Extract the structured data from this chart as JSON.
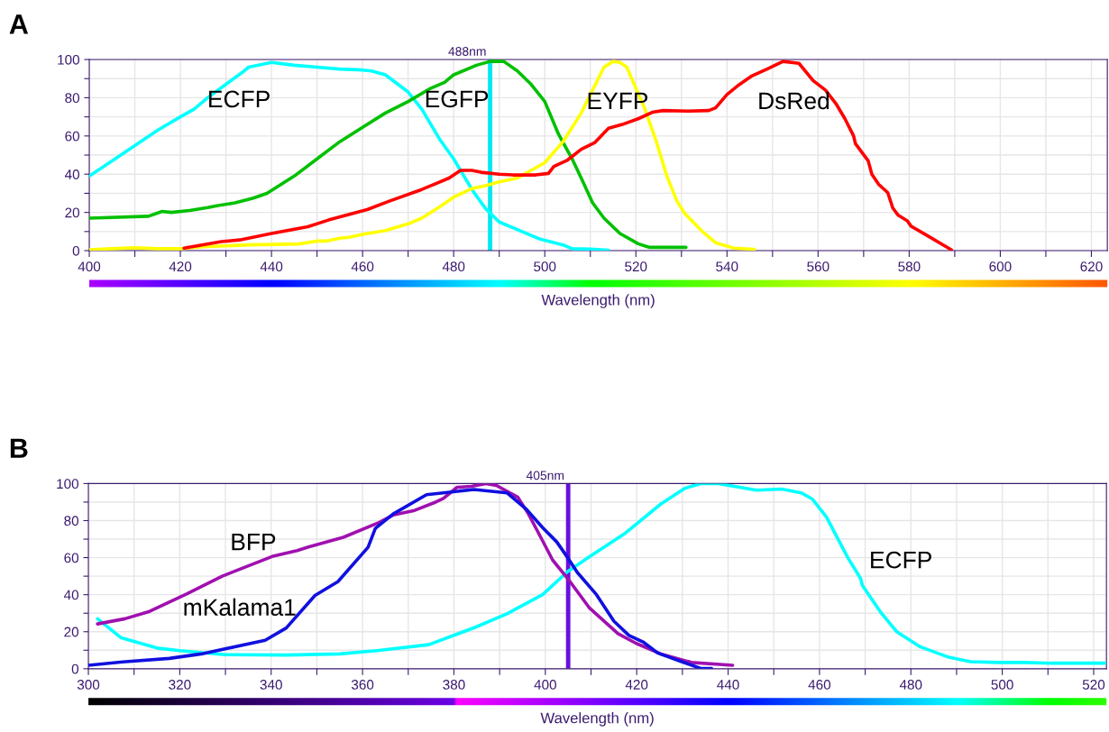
{
  "chart_data": [
    {
      "type": "line",
      "title": "A",
      "xlabel": "Wavelength (nm)",
      "xlim": [
        400,
        623.5
      ],
      "ylim": [
        0,
        100
      ],
      "grid": true,
      "xticks": [
        400,
        {
          "value": 410,
          "label": null
        },
        420,
        {
          "value": 430,
          "label": null
        },
        440,
        {
          "value": 450,
          "label": null
        },
        460,
        {
          "value": 470,
          "label": null
        },
        480,
        {
          "value": 490,
          "label": null
        },
        500,
        {
          "value": 510,
          "label": null
        },
        520,
        {
          "value": 530,
          "label": null
        },
        540,
        {
          "value": 550,
          "label": null
        },
        560,
        {
          "value": 570,
          "label": null
        },
        580,
        {
          "value": 590,
          "label": null
        },
        600,
        {
          "value": 610,
          "label": null
        },
        620
      ],
      "yticks": [
        0,
        {
          "value": 10,
          "label": null
        },
        20,
        {
          "value": 30,
          "label": null
        },
        40,
        {
          "value": 50,
          "label": null
        },
        60,
        {
          "value": 70,
          "label": null
        },
        80,
        {
          "value": 90,
          "label": null
        },
        100
      ],
      "series": [
        {
          "name": "ECFP",
          "color": "#00ffff",
          "x": [
            400,
            405,
            410,
            415,
            420,
            423,
            426,
            430,
            434,
            435,
            440,
            445,
            450,
            455,
            460,
            462,
            465,
            470,
            473,
            477,
            480,
            484,
            487,
            490,
            495,
            499,
            504,
            506,
            510,
            514
          ],
          "values": [
            39,
            47,
            55,
            63,
            70,
            74,
            80,
            87,
            94,
            96,
            98.5,
            97,
            96,
            95,
            94.5,
            94,
            92,
            83,
            74,
            58,
            48,
            32,
            22,
            15,
            10,
            6,
            3,
            1,
            0.8,
            0.2
          ]
        },
        {
          "name": "EGFP",
          "color": "#00c000",
          "x": [
            400,
            413,
            416,
            418,
            422,
            426,
            428,
            432,
            436,
            439,
            445,
            450,
            455,
            460,
            465,
            470,
            475,
            478,
            480,
            485,
            488,
            491,
            494,
            497,
            500,
            503,
            506,
            508,
            510.5,
            513,
            516.5,
            520.5,
            523,
            531
          ],
          "values": [
            17,
            18,
            20.5,
            20,
            21,
            22.5,
            23.5,
            25,
            27.5,
            30,
            39,
            48,
            57,
            64.5,
            72,
            78,
            85,
            88,
            92,
            97,
            99,
            99,
            94,
            87,
            78,
            61,
            48,
            38,
            25,
            17,
            9,
            3.6,
            1.7,
            1.7
          ]
        },
        {
          "name": "EYFP",
          "color": "#ffff00",
          "x": [
            400,
            405,
            410,
            415,
            420,
            425,
            435,
            446,
            450,
            452,
            455,
            457,
            460,
            465,
            470,
            473,
            477,
            480,
            484,
            487,
            490,
            494,
            497,
            500,
            504,
            508,
            513,
            515,
            516.5,
            518,
            522,
            524.5,
            526.8,
            529,
            530.7,
            534.6,
            537.6,
            541.5,
            546
          ],
          "values": [
            0.5,
            1,
            1.5,
            1,
            1,
            2,
            3,
            3.5,
            5,
            5,
            6.5,
            7,
            8.5,
            10.5,
            14,
            17,
            23,
            28,
            32.5,
            34,
            36,
            38,
            42,
            46,
            57,
            72,
            96,
            99,
            98.5,
            96,
            74,
            57,
            39,
            26,
            19.5,
            10,
            4,
            1.3,
            0.7
          ]
        },
        {
          "name": "DsRed",
          "color": "#ff0000",
          "x": [
            420.8,
            429,
            433,
            440,
            448,
            452.5,
            461,
            466,
            473,
            476,
            479,
            481.5,
            484,
            486,
            490,
            493,
            498,
            500.8,
            502,
            505,
            508,
            511,
            514,
            517,
            520.5,
            523.6,
            526,
            531.5,
            536,
            537.5,
            540,
            542.6,
            545.3,
            548.8,
            552.3,
            555.8,
            558.9,
            561.6,
            563.9,
            565.9,
            567.8,
            568.2,
            571,
            571.8,
            573.3,
            575.3,
            576.4,
            577.6,
            579.6,
            580.4,
            583.9,
            589.3
          ],
          "values": [
            1.3,
            4.7,
            5.6,
            9,
            12.5,
            16,
            21.5,
            26,
            32,
            35,
            38,
            42,
            42,
            41,
            40,
            39.6,
            39.6,
            40.4,
            44,
            47.4,
            53,
            56.6,
            64,
            66,
            69,
            72.4,
            73.3,
            73,
            73.3,
            74.7,
            81.7,
            86.7,
            91.2,
            95,
            99,
            98,
            89,
            84,
            77,
            69,
            60,
            56,
            47,
            40,
            34.7,
            30.3,
            22.3,
            18.5,
            15.6,
            12.8,
            8,
            0.4
          ]
        }
      ],
      "ref_lines": [
        {
          "axis": "x",
          "value": 488,
          "label": "488nm",
          "color": "#00e8f0"
        }
      ]
    },
    {
      "type": "line",
      "title": "B",
      "xlabel": "Wavelength (nm)",
      "xlim": [
        300,
        522.8
      ],
      "ylim": [
        0,
        100
      ],
      "grid": true,
      "xticks": [
        300,
        {
          "value": 310,
          "label": null
        },
        320,
        {
          "value": 330,
          "label": null
        },
        340,
        {
          "value": 350,
          "label": null
        },
        360,
        {
          "value": 370,
          "label": null
        },
        380,
        {
          "value": 390,
          "label": null
        },
        400,
        {
          "value": 410,
          "label": null
        },
        420,
        {
          "value": 430,
          "label": null
        },
        440,
        {
          "value": 450,
          "label": null
        },
        460,
        {
          "value": 470,
          "label": null
        },
        480,
        {
          "value": 490,
          "label": null
        },
        500,
        {
          "value": 510,
          "label": null
        },
        520
      ],
      "yticks": [
        0,
        {
          "value": 10,
          "label": null
        },
        20,
        {
          "value": 30,
          "label": null
        },
        40,
        {
          "value": 50,
          "label": null
        },
        60,
        {
          "value": 70,
          "label": null
        },
        80,
        {
          "value": 90,
          "label": null
        },
        100
      ],
      "series": [
        {
          "name": "ECFP",
          "color": "#00ffff",
          "x": [
            302,
            307.2,
            315,
            320,
            330,
            343.3,
            355,
            363.6,
            374.5,
            384.6,
            391.6,
            399.4,
            404.9,
            409.6,
            417.5,
            425.3,
            430.5,
            434,
            437.9,
            446.2,
            451.7,
            456,
            458.4,
            461.5,
            466.2,
            469,
            469.4,
            473.3,
            476.9,
            482,
            488.3,
            493,
            499.3,
            504.8,
            511,
            522.4
          ],
          "values": [
            27,
            16.7,
            11.2,
            9.8,
            7.6,
            7.4,
            8,
            9.9,
            13,
            22.3,
            29.7,
            40,
            52.5,
            60.4,
            73.2,
            89,
            97.4,
            100,
            100,
            96.4,
            97,
            95,
            91.7,
            82,
            60,
            48.7,
            45,
            30.8,
            20,
            11.9,
            6.2,
            3.8,
            3.4,
            3.4,
            3,
            3
          ]
        },
        {
          "name": "BFP",
          "color": "#a010b0",
          "x": [
            302,
            308,
            313.4,
            321.6,
            329.3,
            340.2,
            345.7,
            348,
            355.8,
            363.6,
            366.7,
            371.4,
            376,
            377.7,
            380.7,
            383.8,
            387,
            389.3,
            394,
            396.3,
            399,
            401.6,
            404.9,
            409.6,
            415.9,
            419.8,
            425.3,
            432,
            441
          ],
          "values": [
            24.2,
            27,
            31,
            40.5,
            50,
            60.6,
            63.8,
            65.6,
            71,
            79,
            83,
            85.5,
            90,
            92,
            98,
            98.5,
            100,
            99,
            92.6,
            83.6,
            71,
            58.7,
            48.7,
            33,
            19,
            13.8,
            8,
            3.4,
            1.9
          ]
        },
        {
          "name": "mKalama1",
          "color": "#1010e0",
          "x": [
            300,
            307.5,
            317.7,
            324.7,
            338.7,
            343.3,
            349.6,
            354.6,
            361.2,
            362.8,
            366.7,
            374,
            384.4,
            391.6,
            395.9,
            399.4,
            402.5,
            405,
            407,
            411.2,
            415,
            418.3,
            421.5,
            424.6,
            429.3,
            434,
            436.4
          ],
          "values": [
            1.9,
            3.7,
            5.6,
            8,
            15.4,
            22,
            39.6,
            47,
            65.6,
            75.8,
            83.6,
            94,
            96.8,
            95,
            86,
            76.2,
            68.5,
            59.6,
            52,
            40,
            25.7,
            18,
            14.3,
            8.5,
            4.3,
            0.2,
            0.2
          ]
        }
      ],
      "ref_lines": [
        {
          "axis": "x",
          "value": 405,
          "label": "405nm",
          "color": "#6a0ee0"
        }
      ]
    }
  ]
}
